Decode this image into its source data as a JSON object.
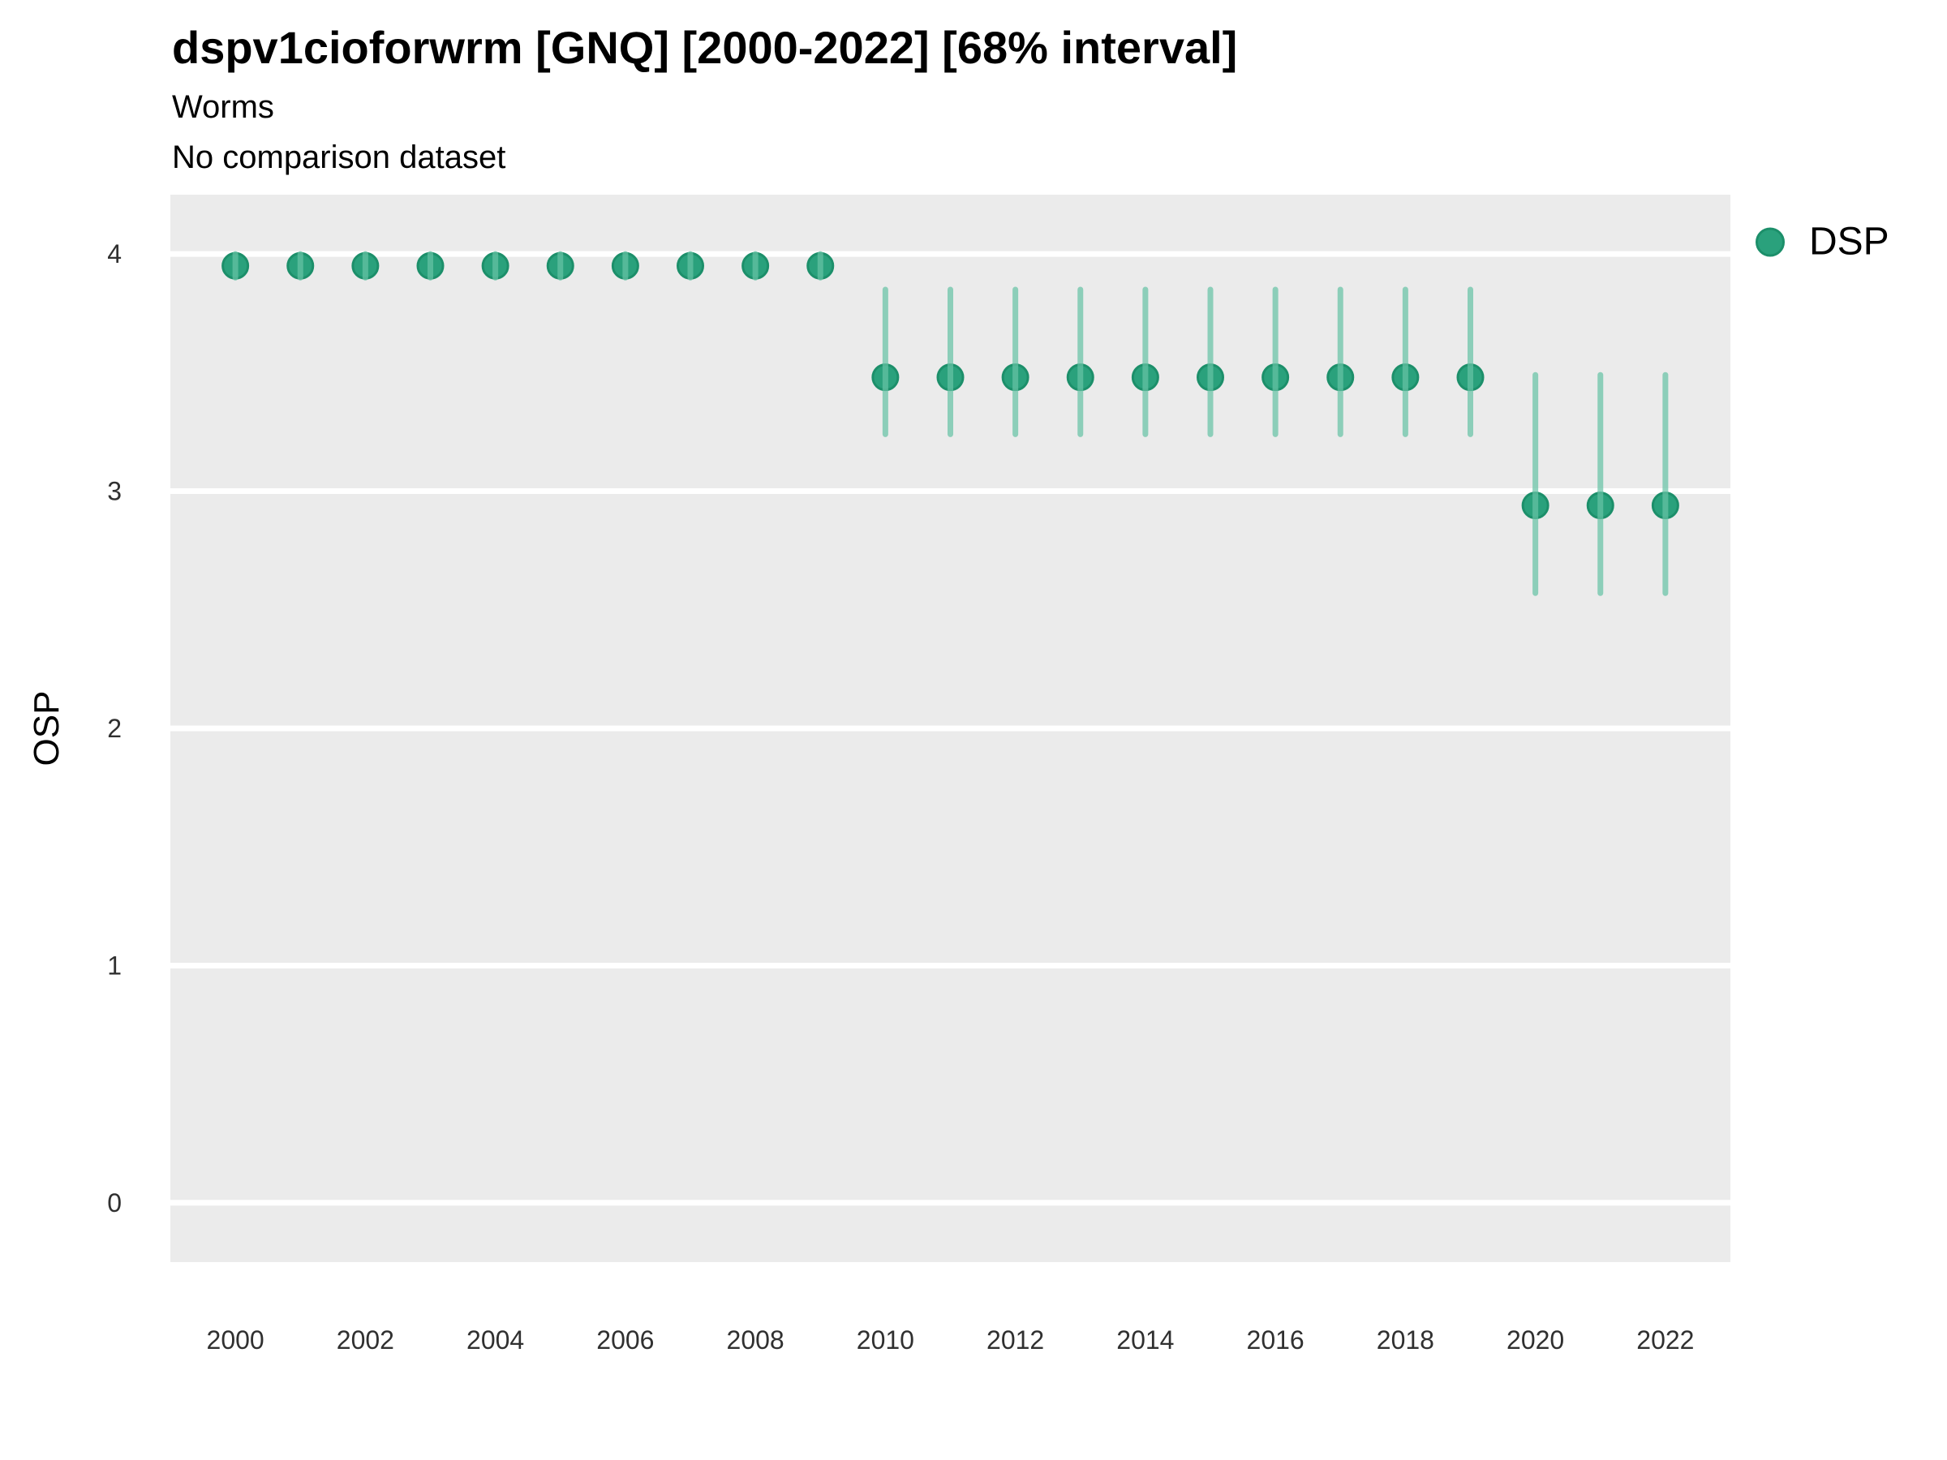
{
  "header": {
    "title": "dspv1cioforwrm [GNQ] [2000-2022] [68% interval]",
    "subtitle": "Worms",
    "note": "No comparison dataset"
  },
  "colors": {
    "panel_bg": "#ebebeb",
    "gridline": "#ffffff",
    "point_fill": "#2aa17c",
    "point_stroke": "#1c8f6a",
    "interval_line": "#66c2a5",
    "tick_text": "#303030",
    "text": "#000000"
  },
  "legend": {
    "position": "right",
    "items": [
      {
        "label": "DSP",
        "color": "#2aa17c"
      }
    ]
  },
  "chart_data": {
    "type": "scatter",
    "subtype": "pointrange",
    "title": "dspv1cioforwrm [GNQ] [2000-2022] [68% interval]",
    "subtitle": "Worms",
    "annotation": "No comparison dataset",
    "interval": "68%",
    "xlabel": "",
    "ylabel": "OSP",
    "x_ticks": [
      2000,
      2002,
      2004,
      2006,
      2008,
      2010,
      2012,
      2014,
      2016,
      2018,
      2020,
      2022
    ],
    "y_ticks": [
      0,
      1,
      2,
      3,
      4
    ],
    "xlim": [
      1999,
      2023
    ],
    "ylim": [
      -0.25,
      4.25
    ],
    "grid": "horizontal-major-only",
    "legend_position": "right",
    "series": [
      {
        "name": "DSP",
        "points": [
          {
            "year": 2000,
            "y": 3.95,
            "lo": 3.9,
            "hi": 4.0
          },
          {
            "year": 2001,
            "y": 3.95,
            "lo": 3.9,
            "hi": 4.0
          },
          {
            "year": 2002,
            "y": 3.95,
            "lo": 3.9,
            "hi": 4.0
          },
          {
            "year": 2003,
            "y": 3.95,
            "lo": 3.9,
            "hi": 4.0
          },
          {
            "year": 2004,
            "y": 3.95,
            "lo": 3.9,
            "hi": 4.0
          },
          {
            "year": 2005,
            "y": 3.95,
            "lo": 3.9,
            "hi": 4.0
          },
          {
            "year": 2006,
            "y": 3.95,
            "lo": 3.9,
            "hi": 4.0
          },
          {
            "year": 2007,
            "y": 3.95,
            "lo": 3.9,
            "hi": 4.0
          },
          {
            "year": 2008,
            "y": 3.95,
            "lo": 3.9,
            "hi": 4.0
          },
          {
            "year": 2009,
            "y": 3.95,
            "lo": 3.9,
            "hi": 4.0
          },
          {
            "year": 2010,
            "y": 3.48,
            "lo": 3.24,
            "hi": 3.85
          },
          {
            "year": 2011,
            "y": 3.48,
            "lo": 3.24,
            "hi": 3.85
          },
          {
            "year": 2012,
            "y": 3.48,
            "lo": 3.24,
            "hi": 3.85
          },
          {
            "year": 2013,
            "y": 3.48,
            "lo": 3.24,
            "hi": 3.85
          },
          {
            "year": 2014,
            "y": 3.48,
            "lo": 3.24,
            "hi": 3.85
          },
          {
            "year": 2015,
            "y": 3.48,
            "lo": 3.24,
            "hi": 3.85
          },
          {
            "year": 2016,
            "y": 3.48,
            "lo": 3.24,
            "hi": 3.85
          },
          {
            "year": 2017,
            "y": 3.48,
            "lo": 3.24,
            "hi": 3.85
          },
          {
            "year": 2018,
            "y": 3.48,
            "lo": 3.24,
            "hi": 3.85
          },
          {
            "year": 2019,
            "y": 3.48,
            "lo": 3.24,
            "hi": 3.85
          },
          {
            "year": 2020,
            "y": 2.94,
            "lo": 2.57,
            "hi": 3.49
          },
          {
            "year": 2021,
            "y": 2.94,
            "lo": 2.57,
            "hi": 3.49
          },
          {
            "year": 2022,
            "y": 2.94,
            "lo": 2.57,
            "hi": 3.49
          }
        ]
      }
    ]
  }
}
